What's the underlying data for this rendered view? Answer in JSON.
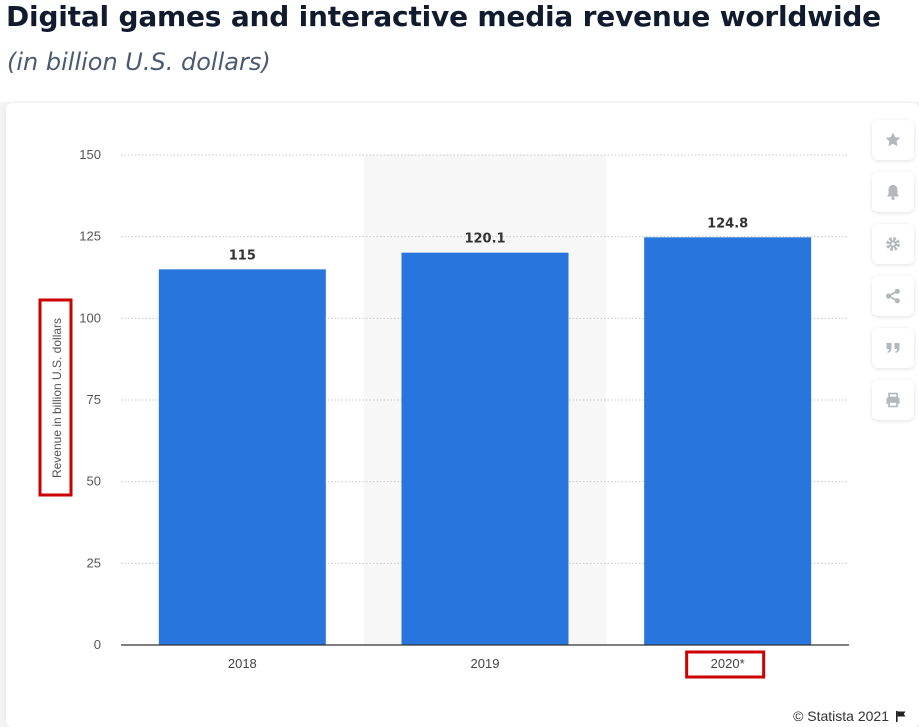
{
  "title": "Digital games and interactive media revenue worldwide",
  "subtitle": "(in billion U.S. dollars)",
  "credit": "© Statista 2021",
  "chart_data": {
    "type": "bar",
    "categories": [
      "2018",
      "2019",
      "2020*"
    ],
    "values": [
      115,
      120.1,
      124.8
    ],
    "value_labels": [
      "115",
      "120.1",
      "124.8"
    ],
    "ylabel": "Revenue in billion U.S. dollars",
    "ylim": [
      0,
      150
    ],
    "yticks": [
      0,
      25,
      50,
      75,
      100,
      125,
      150
    ],
    "grid": true,
    "highlighted_category": "2019",
    "bar_color": "#2876dd",
    "highlight_color": "#cc0000"
  },
  "toolbar": {
    "icons": [
      "star-icon",
      "bell-icon",
      "gear-icon",
      "share-icon",
      "quote-icon",
      "print-icon"
    ]
  }
}
